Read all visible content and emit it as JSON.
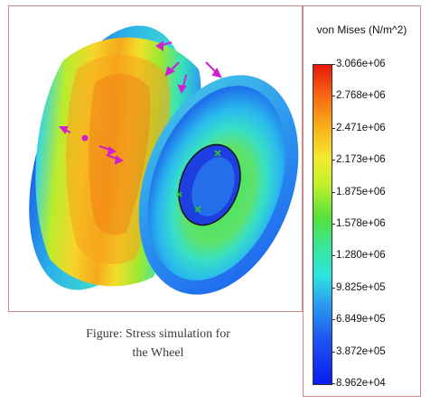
{
  "figure": {
    "caption_line1": "Figure: Stress simulation for",
    "caption_line2": "the Wheel"
  },
  "legend": {
    "title": "von Mises (N/m^2)",
    "ticks": [
      "3.066e+06",
      "2.768e+06",
      "2.471e+06",
      "2.173e+06",
      "1.875e+06",
      "1.578e+06",
      "1.280e+06",
      "9.825e+05",
      "6.849e+05",
      "3.872e+05",
      "8.962e+04"
    ],
    "colors": {
      "max": "#e8160c",
      "high": "#f9ac1a",
      "mid_high": "#f4e92c",
      "mid": "#55e13a",
      "mid_low": "#2de4df",
      "low": "#1d55f2",
      "min": "#0a1bf0"
    }
  },
  "annotations": {
    "load_arrow_color": "#d01fd0",
    "fixture_color": "#2fc02f"
  }
}
